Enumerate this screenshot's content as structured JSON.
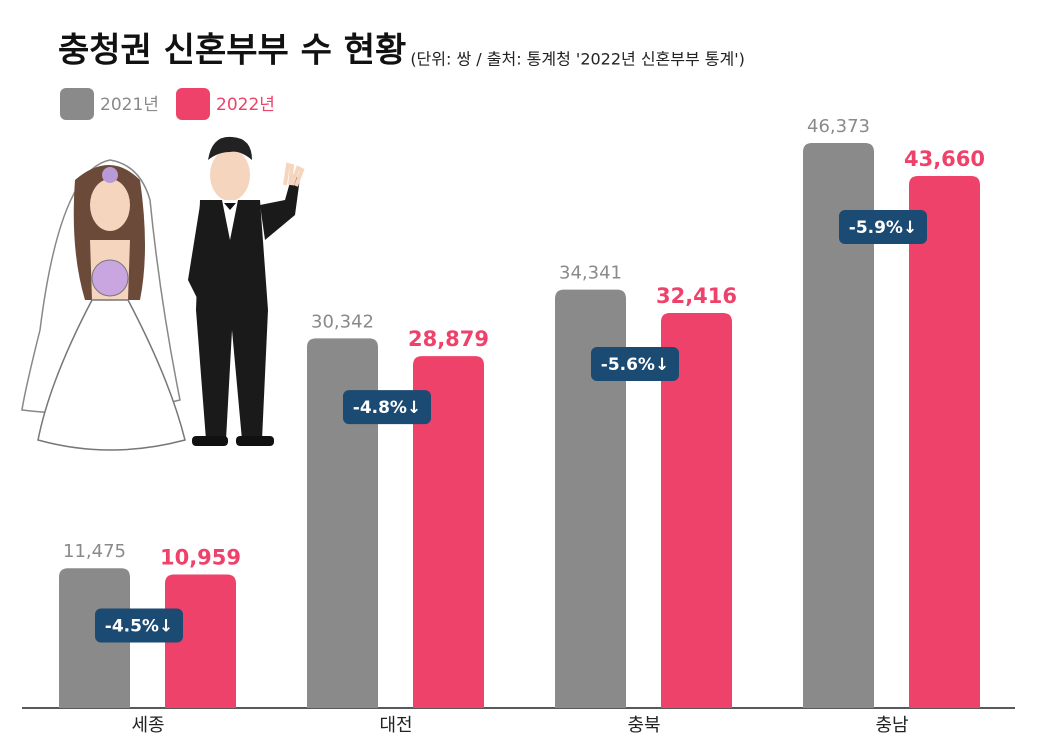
{
  "chart_data": {
    "type": "bar",
    "title": "충청권 신혼부부 수 현황",
    "subtitle": "(단위: 쌍 / 출처: 통계청 '2022년 신혼부부 통계')",
    "categories": [
      "세종",
      "대전",
      "충북",
      "충남"
    ],
    "series": [
      {
        "name": "2021년",
        "color": "#8a8a8a",
        "values": [
          11475,
          30342,
          34341,
          46373
        ],
        "value_labels": [
          "11,475",
          "30,342",
          "34,341",
          "46,373"
        ]
      },
      {
        "name": "2022년",
        "color": "#ef426b",
        "values": [
          10959,
          28879,
          32416,
          43660
        ],
        "value_labels": [
          "10,959",
          "28,879",
          "32,416",
          "43,660"
        ]
      }
    ],
    "change_labels": [
      "-4.5%↓",
      "-4.8%↓",
      "-5.6%↓",
      "-5.9%↓"
    ],
    "badge_color": "#1b4a72"
  }
}
